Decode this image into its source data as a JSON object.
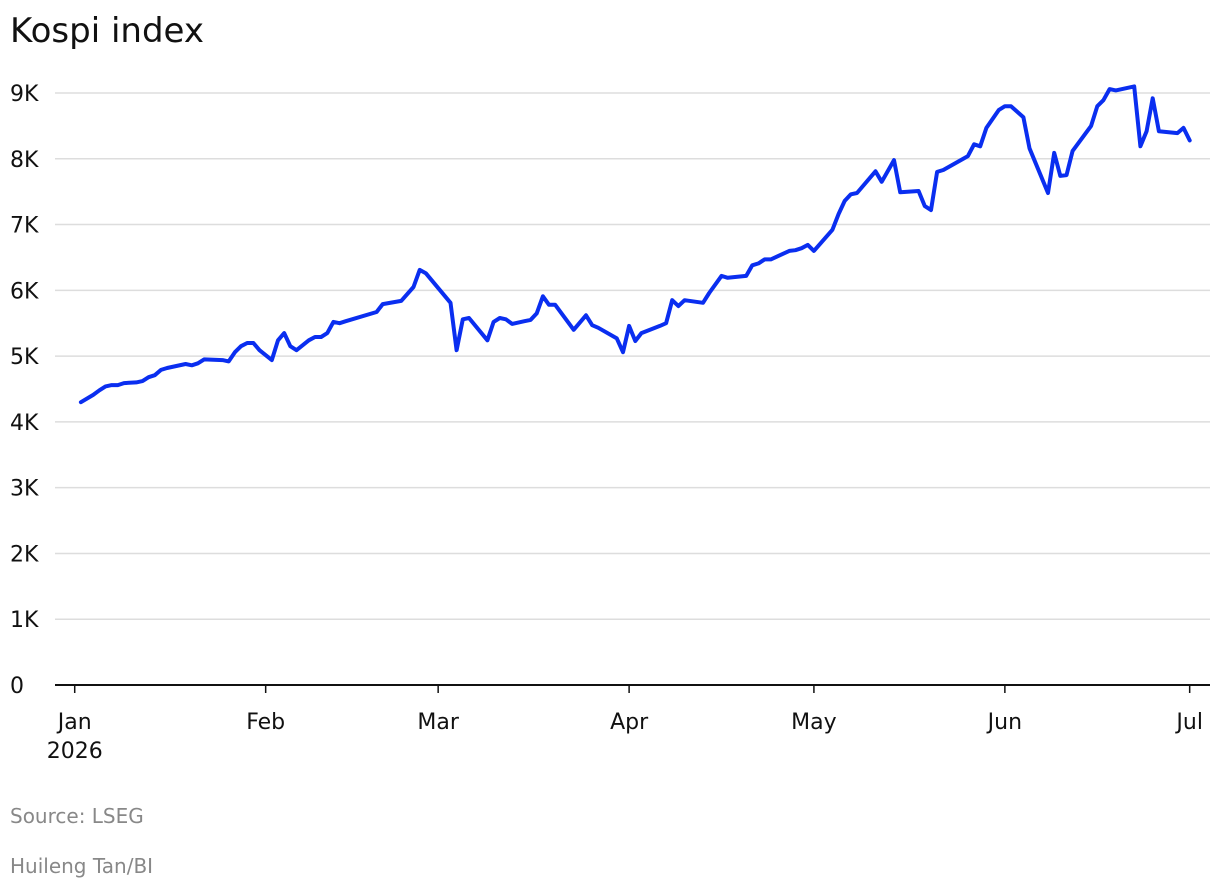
{
  "chart_data": {
    "type": "line",
    "title": "Kospi index",
    "x": [
      1,
      3,
      4,
      5,
      6,
      7,
      8,
      10,
      11,
      12,
      13,
      14,
      15,
      18,
      19,
      20,
      21,
      24,
      25,
      26,
      27,
      28,
      29,
      30,
      32,
      33,
      34,
      35,
      36,
      38,
      39,
      40,
      41,
      42,
      43,
      44,
      49,
      50,
      53,
      55,
      56,
      57,
      61,
      62,
      63,
      64,
      67,
      68,
      69,
      70,
      71,
      73,
      74,
      75,
      76,
      77,
      78,
      81,
      83,
      84,
      85,
      88,
      89,
      90,
      91,
      92,
      95,
      96,
      97,
      98,
      99,
      102,
      103,
      105,
      106,
      109,
      110,
      111,
      112,
      113,
      116,
      117,
      118,
      119,
      120,
      123,
      124,
      125,
      126,
      127,
      130,
      131,
      133,
      134,
      137,
      138,
      139,
      140,
      141,
      145,
      146,
      147,
      148,
      150,
      151,
      152,
      154,
      155,
      158,
      159,
      160,
      161,
      162,
      165,
      166,
      167,
      168,
      169,
      172,
      173,
      174,
      175,
      176,
      179,
      180,
      181
    ],
    "values": [
      4300,
      4410,
      4480,
      4540,
      4560,
      4560,
      4590,
      4600,
      4620,
      4680,
      4710,
      4790,
      4820,
      4880,
      4860,
      4890,
      4950,
      4940,
      4920,
      5060,
      5150,
      5200,
      5200,
      5090,
      4940,
      5240,
      5350,
      5150,
      5090,
      5240,
      5290,
      5290,
      5350,
      5520,
      5500,
      5530,
      5670,
      5790,
      5840,
      6050,
      6310,
      6260,
      5810,
      5090,
      5560,
      5580,
      5240,
      5520,
      5580,
      5560,
      5490,
      5530,
      5550,
      5650,
      5910,
      5780,
      5780,
      5400,
      5620,
      5470,
      5430,
      5270,
      5060,
      5460,
      5230,
      5350,
      5460,
      5500,
      5850,
      5760,
      5850,
      5810,
      5960,
      6220,
      6190,
      6220,
      6380,
      6410,
      6470,
      6470,
      6600,
      6610,
      6640,
      6690,
      6600,
      6920,
      7160,
      7360,
      7460,
      7480,
      7810,
      7650,
      7980,
      7490,
      7510,
      7280,
      7220,
      7800,
      7830,
      8040,
      8220,
      8190,
      8470,
      8740,
      8800,
      8800,
      8630,
      8160,
      7480,
      8090,
      7740,
      7750,
      8120,
      8500,
      8800,
      8890,
      9060,
      9040,
      9100,
      8190,
      8420,
      8920,
      8420,
      8390,
      8470,
      8280
    ],
    "color": "#0a2ef0",
    "xlim": [
      -3.2,
      184.3
    ],
    "xticks": [
      {
        "value": 0,
        "label": "Jan"
      },
      {
        "value": 31,
        "label": "Feb"
      },
      {
        "value": 59,
        "label": "Mar"
      },
      {
        "value": 90,
        "label": "Apr"
      },
      {
        "value": 120,
        "label": "May"
      },
      {
        "value": 151,
        "label": "Jun"
      },
      {
        "value": 181,
        "label": "Jul"
      }
    ],
    "xtick_year": "2026",
    "ylim": [
      0,
      9000
    ],
    "yticks": [
      0,
      {
        "value": 1000,
        "label": "1K"
      },
      {
        "value": 2000,
        "label": "2K"
      },
      {
        "value": 3000,
        "label": "3K"
      },
      {
        "value": 4000,
        "label": "4K"
      },
      {
        "value": 5000,
        "label": "5K"
      },
      {
        "value": 6000,
        "label": "6K"
      },
      {
        "value": 7000,
        "label": "7K"
      },
      {
        "value": 8000,
        "label": "8K"
      },
      {
        "value": 9000,
        "label": "9K"
      }
    ],
    "grid": true,
    "source": "Source: LSEG",
    "credit": "Huileng Tan/BI"
  }
}
